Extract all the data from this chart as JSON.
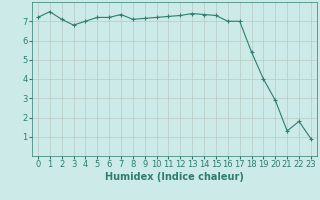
{
  "x": [
    0,
    1,
    2,
    3,
    4,
    5,
    6,
    7,
    8,
    9,
    10,
    11,
    12,
    13,
    14,
    15,
    16,
    17,
    18,
    19,
    20,
    21,
    22,
    23
  ],
  "y": [
    7.2,
    7.5,
    7.1,
    6.8,
    7.0,
    7.2,
    7.2,
    7.35,
    7.1,
    7.15,
    7.2,
    7.25,
    7.3,
    7.4,
    7.35,
    7.3,
    7.0,
    7.0,
    5.4,
    4.0,
    2.9,
    1.3,
    1.8,
    0.9
  ],
  "line_color": "#2e7d6e",
  "marker": "+",
  "marker_size": 3,
  "bg_color": "#cceae7",
  "grid_color": "#b8c8c4",
  "xlabel": "Humidex (Indice chaleur)",
  "xlim": [
    -0.5,
    23.5
  ],
  "ylim": [
    0,
    8
  ],
  "xtick_labels": [
    "0",
    "1",
    "2",
    "3",
    "4",
    "5",
    "6",
    "7",
    "8",
    "9",
    "10",
    "11",
    "12",
    "13",
    "14",
    "15",
    "16",
    "17",
    "18",
    "19",
    "20",
    "21",
    "22",
    "23"
  ],
  "ytick_vals": [
    1,
    2,
    3,
    4,
    5,
    6,
    7
  ],
  "xlabel_fontsize": 7,
  "tick_fontsize": 6
}
